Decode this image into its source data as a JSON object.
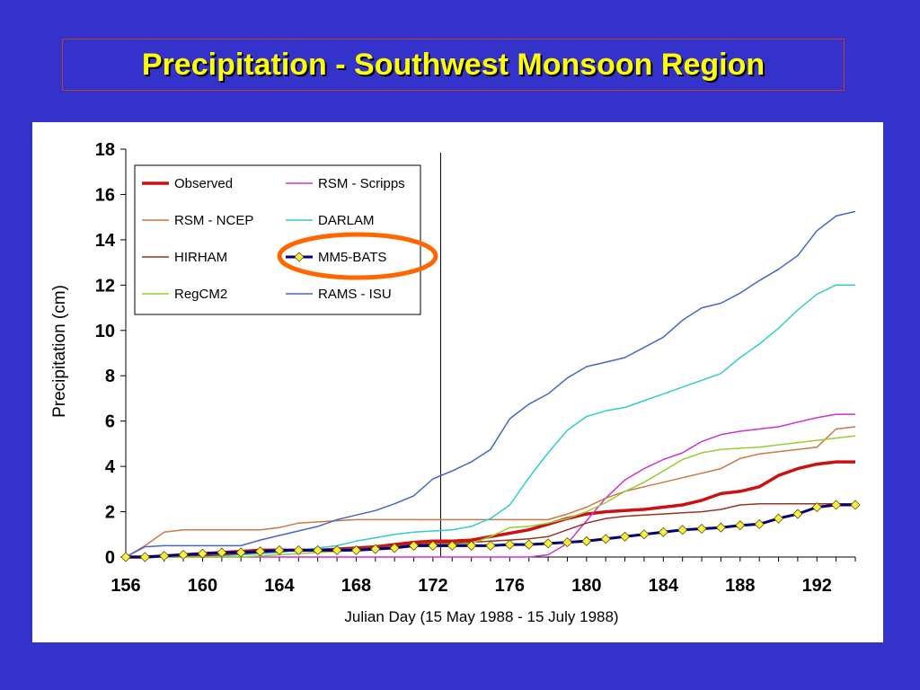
{
  "slide": {
    "title": "Precipitation - Southwest Monsoon Region"
  },
  "colors": {
    "background": "#3333cc",
    "title": "#ffff00",
    "highlight_ellipse": "#ff6600"
  },
  "chart_data": {
    "type": "line",
    "xlabel": "Julian Day (15 May 1988 - 15 July 1988)",
    "ylabel": "Precipitation (cm)",
    "xlim": [
      156,
      194
    ],
    "ylim": [
      0,
      18
    ],
    "x_ticks": [
      156,
      160,
      164,
      168,
      172,
      176,
      180,
      184,
      188,
      192
    ],
    "y_ticks": [
      0,
      2,
      4,
      6,
      8,
      10,
      12,
      14,
      16,
      18
    ],
    "vertical_marker_x": 172.4,
    "legend_placement": "top-left",
    "highlighted_series": "MM5-BATS",
    "x": [
      156,
      157,
      158,
      159,
      160,
      161,
      162,
      163,
      164,
      165,
      166,
      167,
      168,
      169,
      170,
      171,
      172,
      173,
      174,
      175,
      176,
      177,
      178,
      179,
      180,
      181,
      182,
      183,
      184,
      185,
      186,
      187,
      188,
      189,
      190,
      191,
      192,
      193,
      194
    ],
    "series": [
      {
        "name": "Observed",
        "color": "#cc1111",
        "width": 3.5,
        "values": [
          0,
          0,
          0.05,
          0.1,
          0.15,
          0.2,
          0.25,
          0.3,
          0.3,
          0.3,
          0.3,
          0.35,
          0.4,
          0.45,
          0.55,
          0.65,
          0.7,
          0.7,
          0.75,
          0.9,
          1.05,
          1.2,
          1.45,
          1.7,
          1.9,
          2.0,
          2.05,
          2.1,
          2.2,
          2.3,
          2.5,
          2.8,
          2.9,
          3.1,
          3.6,
          3.9,
          4.1,
          4.2,
          4.2
        ]
      },
      {
        "name": "RSM - Scripps",
        "color": "#cc33cc",
        "width": 1.5,
        "values": [
          0,
          0,
          0,
          0,
          0,
          0,
          0,
          0,
          0,
          0,
          0,
          0,
          0,
          0,
          0,
          0,
          0,
          0,
          0,
          0,
          0,
          0,
          0.1,
          0.6,
          1.6,
          2.6,
          3.4,
          3.9,
          4.3,
          4.6,
          5.1,
          5.4,
          5.55,
          5.65,
          5.75,
          5.95,
          6.15,
          6.3,
          6.3
        ]
      },
      {
        "name": "RSM - NCEP",
        "color": "#cc7744",
        "width": 1.5,
        "values": [
          0,
          0.5,
          1.1,
          1.2,
          1.2,
          1.2,
          1.2,
          1.2,
          1.3,
          1.5,
          1.55,
          1.6,
          1.65,
          1.65,
          1.65,
          1.65,
          1.65,
          1.65,
          1.65,
          1.65,
          1.65,
          1.65,
          1.65,
          1.9,
          2.2,
          2.6,
          2.9,
          3.1,
          3.3,
          3.5,
          3.7,
          3.9,
          4.35,
          4.55,
          4.65,
          4.75,
          4.85,
          5.65,
          5.75
        ]
      },
      {
        "name": "DARLAM",
        "color": "#33cccc",
        "width": 1.5,
        "values": [
          0,
          0,
          0,
          0,
          0,
          0.05,
          0.1,
          0.15,
          0.2,
          0.3,
          0.4,
          0.5,
          0.7,
          0.85,
          1.0,
          1.1,
          1.15,
          1.2,
          1.35,
          1.7,
          2.3,
          3.5,
          4.6,
          5.6,
          6.2,
          6.45,
          6.6,
          6.9,
          7.2,
          7.5,
          7.8,
          8.1,
          8.8,
          9.4,
          10.1,
          10.9,
          11.6,
          12.0,
          12.0
        ]
      },
      {
        "name": "HIRHAM",
        "color": "#993322",
        "width": 1.5,
        "values": [
          0,
          0,
          0,
          0,
          0.05,
          0.1,
          0.15,
          0.2,
          0.25,
          0.3,
          0.3,
          0.35,
          0.4,
          0.45,
          0.5,
          0.55,
          0.6,
          0.6,
          0.65,
          0.7,
          0.75,
          0.8,
          0.9,
          1.2,
          1.5,
          1.7,
          1.8,
          1.85,
          1.9,
          1.95,
          2.0,
          2.1,
          2.3,
          2.35,
          2.35,
          2.35,
          2.35,
          2.35,
          2.35
        ]
      },
      {
        "name": "MM5-BATS",
        "color": "#00007a",
        "width": 3,
        "marker": "diamond",
        "marker_color": "#ffee44",
        "values": [
          0,
          0,
          0.05,
          0.1,
          0.15,
          0.2,
          0.2,
          0.25,
          0.3,
          0.3,
          0.3,
          0.3,
          0.3,
          0.35,
          0.4,
          0.5,
          0.5,
          0.5,
          0.5,
          0.5,
          0.55,
          0.55,
          0.6,
          0.65,
          0.7,
          0.8,
          0.9,
          1.0,
          1.1,
          1.2,
          1.25,
          1.3,
          1.4,
          1.45,
          1.7,
          1.9,
          2.2,
          2.3,
          2.3
        ]
      },
      {
        "name": "RegCM2",
        "color": "#99cc33",
        "width": 1.5,
        "values": [
          0,
          0,
          0,
          0,
          0,
          0,
          0,
          0.05,
          0.1,
          0.15,
          0.2,
          0.25,
          0.3,
          0.35,
          0.4,
          0.45,
          0.5,
          0.55,
          0.6,
          0.9,
          1.3,
          1.35,
          1.5,
          1.7,
          2.0,
          2.4,
          2.9,
          3.3,
          3.8,
          4.3,
          4.6,
          4.75,
          4.8,
          4.85,
          4.95,
          5.05,
          5.15,
          5.25,
          5.35
        ]
      },
      {
        "name": "RAMS - ISU",
        "color": "#4466cc",
        "width": 1.5,
        "values": [
          0,
          0.45,
          0.5,
          0.5,
          0.5,
          0.5,
          0.5,
          0.75,
          0.95,
          1.15,
          1.35,
          1.65,
          1.85,
          2.05,
          2.35,
          2.7,
          3.45,
          3.8,
          4.2,
          4.75,
          6.1,
          6.75,
          7.2,
          7.9,
          8.4,
          8.6,
          8.8,
          9.25,
          9.7,
          10.45,
          11.0,
          11.2,
          11.65,
          12.2,
          12.7,
          13.3,
          14.4,
          15.05,
          15.25
        ]
      }
    ]
  }
}
